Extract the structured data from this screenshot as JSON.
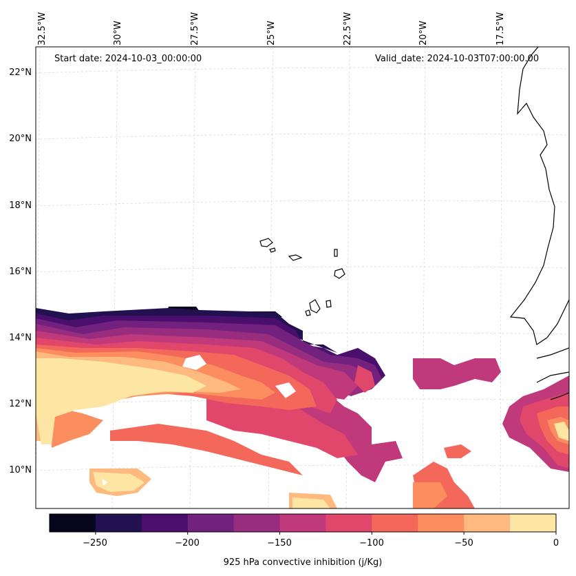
{
  "map": {
    "start_date": "Start date: 2024-10-03_00:00:00",
    "valid_date": "Valid_date: 2024-10-03T07:00:00.00",
    "lon_labels": [
      "32.5°W",
      "30°W",
      "27.5°W",
      "25°W",
      "22.5°W",
      "20°W",
      "17.5°W"
    ],
    "lat_labels": [
      "22°N",
      "20°N",
      "18°N",
      "16°N",
      "14°N",
      "12°N",
      "10°N"
    ],
    "variable": "925 hPa convective inhibition (j/Kg)"
  },
  "colorbar": {
    "label": "925 hPa convective inhibition (j/Kg)",
    "ticks": [
      "−250",
      "−200",
      "−150",
      "−100",
      "−50",
      "0"
    ],
    "levels": [
      -275,
      -250,
      -225,
      -200,
      -175,
      -150,
      -125,
      -100,
      -75,
      -50,
      -25,
      0
    ],
    "colors": [
      "#07061c",
      "#221150",
      "#4a0f6d",
      "#72217e",
      "#982d80",
      "#c0397a",
      "#e0476b",
      "#f4685c",
      "#fb8d5f",
      "#fdb97e",
      "#fde5a3"
    ]
  }
}
